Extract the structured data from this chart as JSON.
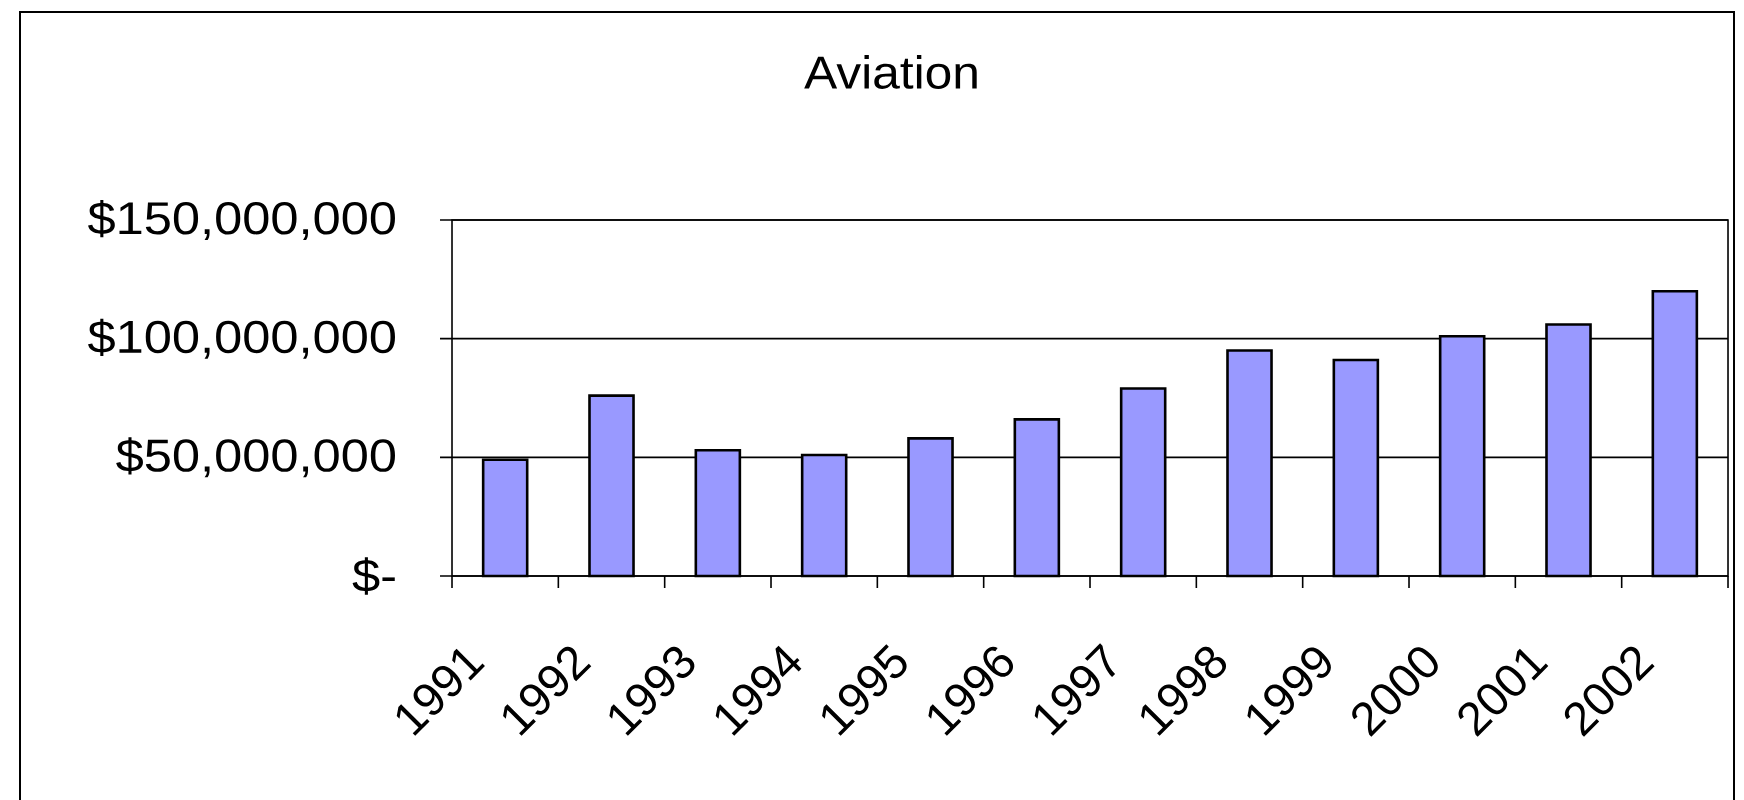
{
  "chart_data": {
    "type": "bar",
    "title": "Aviation",
    "categories": [
      "1991",
      "1992",
      "1993",
      "1994",
      "1995",
      "1996",
      "1997",
      "1998",
      "1999",
      "2000",
      "2001",
      "2002"
    ],
    "values": [
      49000000,
      76000000,
      53000000,
      51000000,
      58000000,
      66000000,
      79000000,
      95000000,
      91000000,
      101000000,
      106000000,
      120000000
    ],
    "color": "#9999ff",
    "ylim": [
      0,
      150000000
    ],
    "yticks": [
      {
        "value": 0,
        "label": "$-"
      },
      {
        "value": 50000000,
        "label": "$50,000,000"
      },
      {
        "value": 100000000,
        "label": "$100,000,000"
      },
      {
        "value": 150000000,
        "label": "$150,000,000"
      }
    ],
    "grid": "y"
  }
}
